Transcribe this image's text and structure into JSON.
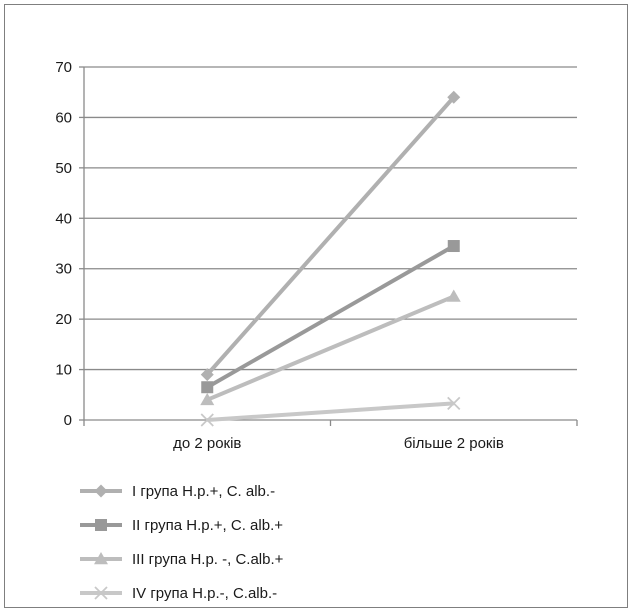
{
  "chart_data": {
    "type": "line",
    "categories": [
      "до 2 років",
      "більше 2 років"
    ],
    "ylim": [
      0,
      70
    ],
    "yticks": [
      0,
      10,
      20,
      30,
      40,
      50,
      60,
      70
    ],
    "grid": true,
    "legend_position": "bottom-left",
    "series": [
      {
        "name": "I група H.p.+, C. alb.-",
        "values": [
          9,
          64
        ],
        "color": "#b0b0b0",
        "marker": "diamond"
      },
      {
        "name": "II група H.p.+, C. alb.+",
        "values": [
          6.5,
          34.5
        ],
        "color": "#999999",
        "marker": "square"
      },
      {
        "name": "III група H.p. -, C.alb.+",
        "values": [
          4,
          24.5
        ],
        "color": "#bdbdbd",
        "marker": "triangle"
      },
      {
        "name": "IV група H.p.-, C.alb.-",
        "values": [
          0,
          3.3
        ],
        "color": "#c8c8c8",
        "marker": "x"
      }
    ]
  }
}
